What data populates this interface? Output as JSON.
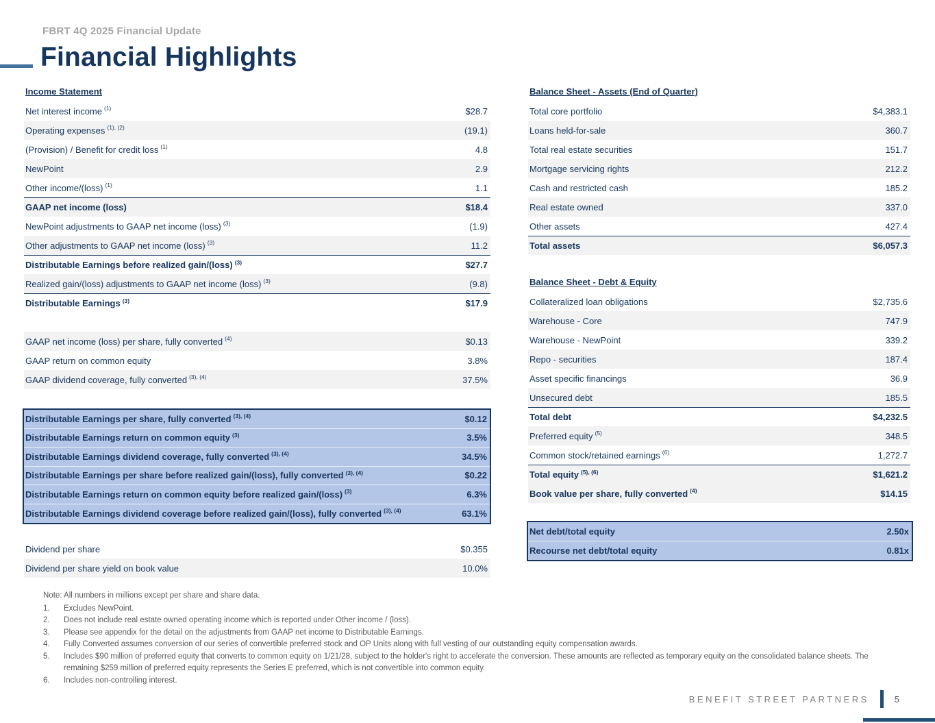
{
  "header": {
    "eyebrow": "FBRT 4Q 2025 Financial Update",
    "title": "Financial Highlights"
  },
  "income_statement": {
    "heading": "Income Statement",
    "rows": [
      {
        "label": "Net interest income",
        "sup": "(1)",
        "value": "$28.7"
      },
      {
        "label": "Operating expenses",
        "sup": "(1), (2)",
        "value": "(19.1)"
      },
      {
        "label": "(Provision) / Benefit for credit loss",
        "sup": "(1)",
        "value": "4.8"
      },
      {
        "label": "NewPoint",
        "value": "2.9"
      },
      {
        "label": "Other income/(loss)",
        "sup": "(1)",
        "value": "1.1"
      },
      {
        "label": "GAAP net income (loss)",
        "value": "$18.4",
        "bold": true,
        "topline": true
      },
      {
        "label": "NewPoint adjustments to GAAP net income (loss)",
        "sup": "(3)",
        "value": "(1.9)"
      },
      {
        "label": "Other adjustments to GAAP net income (loss)",
        "sup": "(3)",
        "value": "11.2"
      },
      {
        "label": "Distributable Earnings before realized gain/(loss)",
        "sup": "(3)",
        "value": "$27.7",
        "bold": true,
        "topline": true
      },
      {
        "label": "Realized gain/(loss) adjustments to GAAP net income (loss)",
        "sup": "(3)",
        "value": "(9.8)"
      },
      {
        "label": "Distributable Earnings",
        "sup": "(3)",
        "value": "$17.9",
        "bold": true,
        "topline": true
      }
    ]
  },
  "per_share_metrics": {
    "rows": [
      {
        "label": "GAAP net income (loss) per share, fully converted",
        "sup": "(4)",
        "value": "$0.13"
      },
      {
        "label": "GAAP return on common equity",
        "value": "3.8%"
      },
      {
        "label": "GAAP dividend coverage, fully converted",
        "sup": "(3), (4)",
        "value": "37.5%"
      }
    ]
  },
  "de_highlight_box": {
    "rows": [
      {
        "label": "Distributable Earnings per share, fully converted",
        "sup": "(3), (4)",
        "value": "$0.12"
      },
      {
        "label": "Distributable Earnings return on common equity",
        "sup": "(3)",
        "value": "3.5%"
      },
      {
        "label": "Distributable Earnings dividend coverage, fully converted",
        "sup": "(3), (4)",
        "value": "34.5%"
      },
      {
        "label": "Distributable Earnings per share before realized gain/(loss), fully converted",
        "sup": "(3), (4)",
        "value": "$0.22"
      },
      {
        "label": "Distributable Earnings return on common equity before realized gain/(loss)",
        "sup": "(3)",
        "value": "6.3%"
      },
      {
        "label": "Distributable Earnings dividend coverage before realized gain/(loss), fully converted",
        "sup": "(3), (4)",
        "value": "63.1%"
      }
    ]
  },
  "dividend": {
    "rows": [
      {
        "label": "Dividend per share",
        "value": "$0.355"
      },
      {
        "label": "Dividend per share yield on book value",
        "value": "10.0%"
      }
    ]
  },
  "balance_sheet_assets": {
    "heading": "Balance Sheet - Assets (End of Quarter)",
    "rows": [
      {
        "label": "Total core portfolio",
        "value": "$4,383.1"
      },
      {
        "label": "Loans held-for-sale",
        "value": "360.7"
      },
      {
        "label": "Total real estate securities",
        "value": "151.7"
      },
      {
        "label": "Mortgage servicing rights",
        "value": "212.2"
      },
      {
        "label": "Cash and restricted cash",
        "value": "185.2"
      },
      {
        "label": "Real estate owned",
        "value": "337.0"
      },
      {
        "label": "Other assets",
        "value": "427.4"
      },
      {
        "label": "Total assets",
        "value": "$6,057.3",
        "bold": true,
        "topline": true
      }
    ]
  },
  "balance_sheet_debt_equity": {
    "heading": "Balance Sheet - Debt & Equity",
    "rows": [
      {
        "label": "Collateralized loan obligations",
        "value": "$2,735.6"
      },
      {
        "label": "Warehouse - Core",
        "value": "747.9"
      },
      {
        "label": "Warehouse - NewPoint",
        "value": "339.2"
      },
      {
        "label": "Repo - securities",
        "value": "187.4"
      },
      {
        "label": "Asset specific financings",
        "value": "36.9"
      },
      {
        "label": "Unsecured debt",
        "value": "185.5"
      },
      {
        "label": "Total debt",
        "value": "$4,232.5",
        "bold": true,
        "topline": true
      },
      {
        "label": "Preferred equity",
        "sup": "(5)",
        "value": "348.5"
      },
      {
        "label": "Common stock/retained earnings",
        "sup": "(6)",
        "value": "1,272.7"
      },
      {
        "label": "Total equity",
        "sup": "(5), (6)",
        "value": "$1,621.2",
        "bold": true,
        "topline": true
      },
      {
        "label": "Book value per share, fully converted",
        "sup": "(4)",
        "value": "$14.15",
        "bold": true,
        "shaded": true
      }
    ]
  },
  "ratio_box": {
    "rows": [
      {
        "label": "Net debt/total equity",
        "value": "2.50x",
        "bold": true
      },
      {
        "label": "Recourse net debt/total equity",
        "value": "0.81x",
        "bold": true
      }
    ]
  },
  "notes": {
    "note": "Note: All numbers in millions except per share and share data.",
    "items": [
      {
        "num": "1.",
        "text": "Excludes NewPoint."
      },
      {
        "num": "2.",
        "text": "Does not include real estate owned operating income which is reported under Other income / (loss)."
      },
      {
        "num": "3.",
        "text": "Please see appendix for the detail on the adjustments from GAAP net income to Distributable Earnings."
      },
      {
        "num": "4.",
        "text": "Fully Converted assumes conversion of our series of convertible preferred stock and OP Units along with full vesting of our outstanding equity compensation awards."
      },
      {
        "num": "5.",
        "text": "Includes $90 million of preferred equity that converts to common equity on 1/21/28, subject to the holder's right to accelerate the conversion. These amounts are reflected as temporary equity on the consolidated balance sheets. The remaining $259 million of preferred equity represents the Series E preferred, which is not convertible into common equity."
      },
      {
        "num": "6.",
        "text": "Includes non-controlling interest."
      }
    ]
  },
  "footer": {
    "brand": "BENEFIT STREET PARTNERS",
    "page": "5"
  },
  "colors": {
    "navy": "#17365D",
    "accent_blue": "#41719C",
    "highlight_fill": "#B4C6E7",
    "stripe_gray": "#F2F2F2",
    "footer_bar": "#1F4E79"
  }
}
